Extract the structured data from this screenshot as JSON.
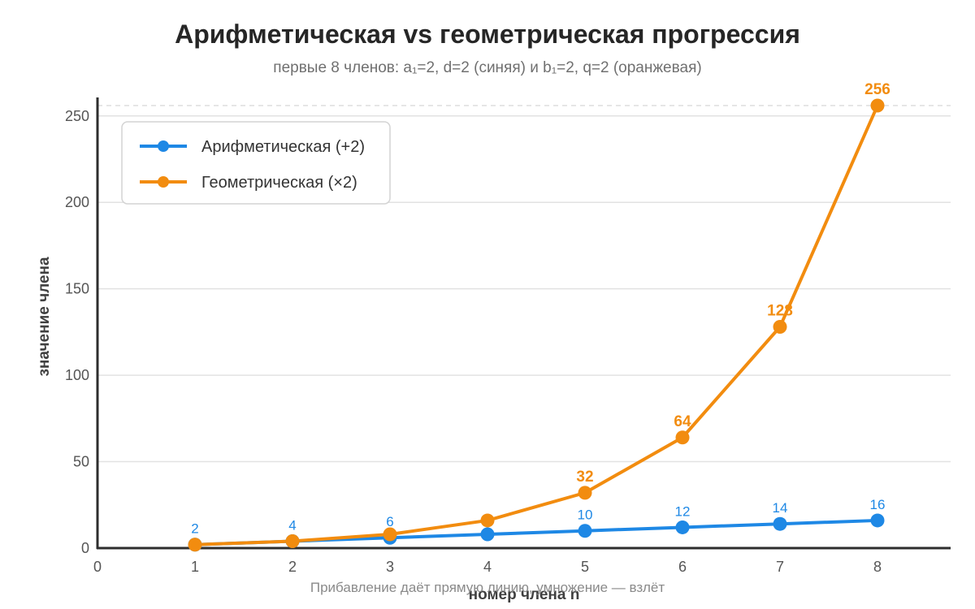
{
  "chart_data": {
    "type": "line",
    "title": "Арифметическая vs геометрическая прогрессия",
    "subtitle": "первые 8 членов: a₁=2, d=2 (синяя) и b₁=2, q=2 (оранжевая)",
    "xlabel": "номер члена n",
    "ylabel": "значение члена",
    "note": "Прибавление даёт прямую линию, умножение — взлёт",
    "x": [
      1,
      2,
      3,
      4,
      5,
      6,
      7,
      8
    ],
    "xlim": [
      0,
      8.75
    ],
    "ylim": [
      0,
      256
    ],
    "x_ticks": [
      0,
      1,
      2,
      3,
      4,
      5,
      6,
      7,
      8
    ],
    "y_ticks": [
      0,
      50,
      100,
      150,
      200,
      250
    ],
    "grid": true,
    "legend_position": "top-left",
    "series": [
      {
        "name": "Арифметическая (+2)",
        "color": "#1E88E5",
        "values": [
          2,
          4,
          6,
          8,
          10,
          12,
          14,
          16
        ],
        "labels": [
          "2",
          "4",
          "6",
          "",
          "10",
          "12",
          "14",
          "16"
        ]
      },
      {
        "name": "Геометрическая (×2)",
        "color": "#F28C0F",
        "values": [
          2,
          4,
          8,
          16,
          32,
          64,
          128,
          256
        ],
        "labels": [
          "",
          "",
          "",
          "",
          "32",
          "64",
          "128",
          "256"
        ]
      }
    ]
  }
}
